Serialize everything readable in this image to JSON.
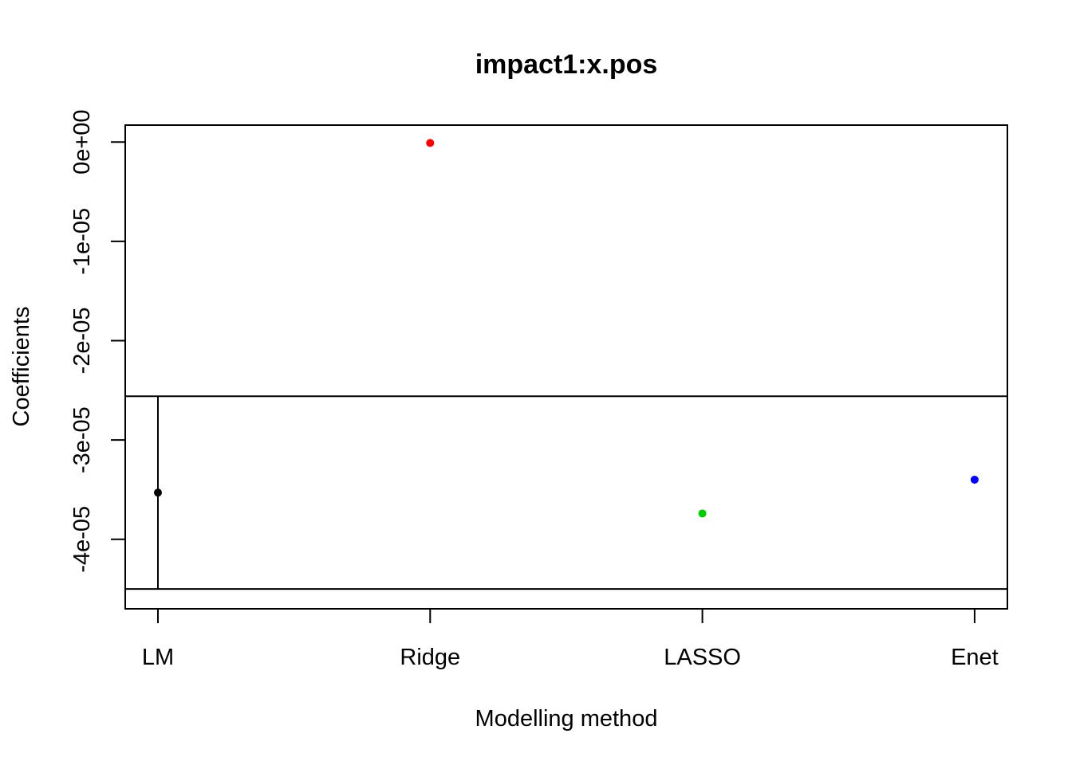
{
  "chart_data": {
    "type": "scatter",
    "title": "impact1:x.pos",
    "xlabel": "Modelling method",
    "ylabel": "Coefficients",
    "categories": [
      "LM",
      "Ridge",
      "LASSO",
      "Enet"
    ],
    "values": [
      -3.53e-05,
      -1e-07,
      -3.74e-05,
      -3.4e-05
    ],
    "point_colors": [
      "#000000",
      "#ff0000",
      "#00cd00",
      "#0000ff"
    ],
    "yticks": [
      0,
      -1e-05,
      -2e-05,
      -3e-05,
      -4e-05
    ],
    "ytick_labels": [
      "0e+00",
      "-1e-05",
      "-2e-05",
      "-3e-05",
      "-4e-05"
    ],
    "ylim": [
      -4.7e-05,
      1.7e-06
    ],
    "error_bar": {
      "category": "LM",
      "upper": -2.56e-05,
      "lower": -4.5e-05
    },
    "reference_lines": [
      -2.56e-05,
      -4.5e-05
    ],
    "grid": false,
    "legend": "none"
  }
}
